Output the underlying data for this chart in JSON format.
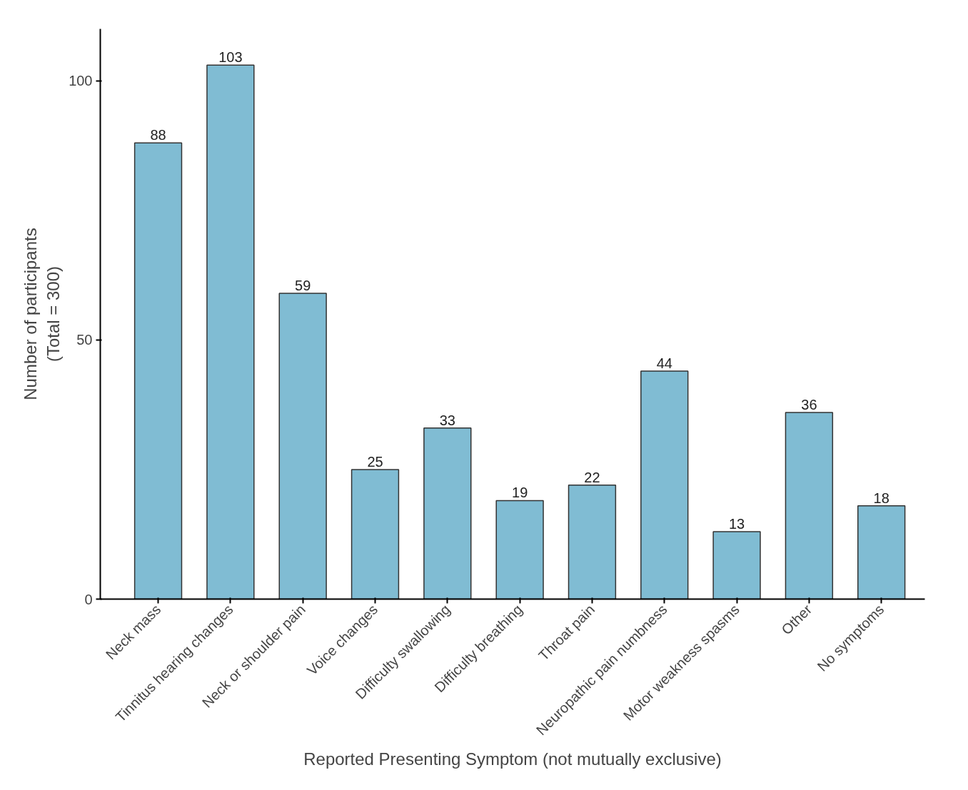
{
  "chart_data": {
    "type": "bar",
    "xlabel": "Reported Presenting Symptom (not mutually exclusive)",
    "ylabel": "Number of participants\n(Total = 300)",
    "categories": [
      "Neck mass",
      "Tinnitus hearing changes",
      "Neck or shoulder pain",
      "Voice changes",
      "Difficulty swallowing",
      "Difficulty breathing",
      "Throat pain",
      "Neuropathic pain numbness",
      "Motor weakness spasms",
      "Other",
      "No symptoms"
    ],
    "values": [
      88,
      103,
      59,
      25,
      33,
      19,
      22,
      44,
      13,
      36,
      18
    ],
    "color": "#80bcd3",
    "ylim": [
      0,
      110
    ],
    "yticks": [
      0,
      50,
      100
    ],
    "grid": false,
    "data_labels": true
  }
}
